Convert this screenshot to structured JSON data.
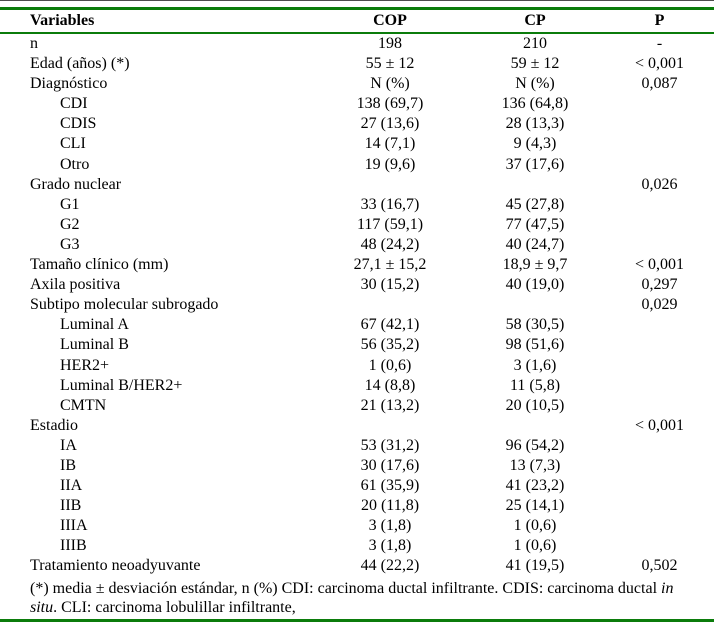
{
  "page": {
    "background": "#ffffff",
    "accent_green": "#0b7c0b",
    "top_edge_color": "#4d4d4d"
  },
  "table": {
    "headers": [
      "Variables",
      "COP",
      "CP",
      "P"
    ],
    "rows": [
      {
        "label": "n",
        "indent": false,
        "cop": "198",
        "cp": "210",
        "p": "-"
      },
      {
        "label": "Edad (años) (*)",
        "indent": false,
        "cop": "55 ± 12",
        "cp": "59 ± 12",
        "p": "< 0,001"
      },
      {
        "label": "Diagnóstico",
        "indent": false,
        "cop": "N (%)",
        "cp": "N (%)",
        "p": "0,087"
      },
      {
        "label": "CDI",
        "indent": true,
        "cop": "138 (69,7)",
        "cp": "136 (64,8)",
        "p": ""
      },
      {
        "label": "CDIS",
        "indent": true,
        "cop": "27 (13,6)",
        "cp": "28 (13,3)",
        "p": ""
      },
      {
        "label": "CLI",
        "indent": true,
        "cop": "14 (7,1)",
        "cp": "9 (4,3)",
        "p": ""
      },
      {
        "label": "Otro",
        "indent": true,
        "cop": "19 (9,6)",
        "cp": "37 (17,6)",
        "p": ""
      },
      {
        "label": "Grado nuclear",
        "indent": false,
        "cop": "",
        "cp": "",
        "p": "0,026"
      },
      {
        "label": "G1",
        "indent": true,
        "cop": "33 (16,7)",
        "cp": "45 (27,8)",
        "p": ""
      },
      {
        "label": "G2",
        "indent": true,
        "cop": "117 (59,1)",
        "cp": "77 (47,5)",
        "p": ""
      },
      {
        "label": "G3",
        "indent": true,
        "cop": "48 (24,2)",
        "cp": "40 (24,7)",
        "p": ""
      },
      {
        "label": "Tamaño clínico (mm)",
        "indent": false,
        "cop": "27,1 ± 15,2",
        "cp": "18,9 ± 9,7",
        "p": "< 0,001"
      },
      {
        "label": "Axila positiva",
        "indent": false,
        "cop": "30 (15,2)",
        "cp": "40 (19,0)",
        "p": "0,297"
      },
      {
        "label": "Subtipo molecular subrogado",
        "indent": false,
        "cop": "",
        "cp": "",
        "p": "0,029"
      },
      {
        "label": "Luminal A",
        "indent": true,
        "cop": "67 (42,1)",
        "cp": "58 (30,5)",
        "p": ""
      },
      {
        "label": "Luminal B",
        "indent": true,
        "cop": "56 (35,2)",
        "cp": "98 (51,6)",
        "p": ""
      },
      {
        "label": "HER2+",
        "indent": true,
        "cop": "1 (0,6)",
        "cp": "3 (1,6)",
        "p": ""
      },
      {
        "label": "Luminal B/HER2+",
        "indent": true,
        "cop": "14 (8,8)",
        "cp": "11 (5,8)",
        "p": ""
      },
      {
        "label": "CMTN",
        "indent": true,
        "cop": "21 (13,2)",
        "cp": "20 (10,5)",
        "p": ""
      },
      {
        "label": "Estadio",
        "indent": false,
        "cop": "",
        "cp": "",
        "p": "< 0,001"
      },
      {
        "label": "IA",
        "indent": true,
        "cop": "53 (31,2)",
        "cp": "96 (54,2)",
        "p": ""
      },
      {
        "label": "IB",
        "indent": true,
        "cop": "30 (17,6)",
        "cp": "13 (7,3)",
        "p": ""
      },
      {
        "label": "IIA",
        "indent": true,
        "cop": "61 (35,9)",
        "cp": "41 (23,2)",
        "p": ""
      },
      {
        "label": "IIB",
        "indent": true,
        "cop": "20 (11,8)",
        "cp": "25 (14,1)",
        "p": ""
      },
      {
        "label": "IIIA",
        "indent": true,
        "cop": "3 (1,8)",
        "cp": "1 (0,6)",
        "p": ""
      },
      {
        "label": "IIIB",
        "indent": true,
        "cop": "3 (1,8)",
        "cp": "1 (0,6)",
        "p": ""
      },
      {
        "label": "Tratamiento neoadyuvante",
        "indent": false,
        "cop": "44 (22,2)",
        "cp": "41 (19,5)",
        "p": "0,502"
      }
    ]
  },
  "footnote": {
    "pre_italic": "(*) media ± desviación estándar, n (%) CDI: carcinoma ductal infiltrante. CDIS: carcinoma ductal ",
    "italic": "in situ",
    "post_italic": ". CLI: carcinoma lobulillar infiltrante,"
  }
}
